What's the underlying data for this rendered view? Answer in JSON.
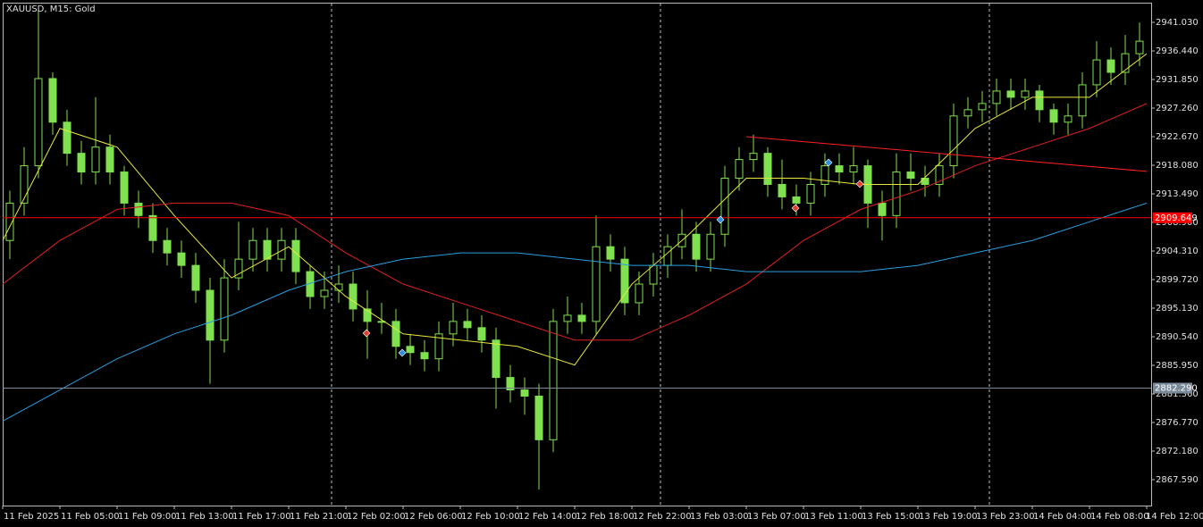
{
  "chart_data": {
    "type": "candlestick",
    "title": "XAUUSD, M15:  Gold",
    "categories": [
      "11 Feb 2025",
      "11 Feb 05:00",
      "11 Feb 09:00",
      "11 Feb 13:00",
      "11 Feb 17:00",
      "11 Feb 21:00",
      "12 Feb 02:00",
      "12 Feb 06:00",
      "12 Feb 10:00",
      "12 Feb 14:00",
      "12 Feb 18:00",
      "12 Feb 22:00",
      "13 Feb 03:00",
      "13 Feb 07:00",
      "13 Feb 11:00",
      "13 Feb 15:00",
      "13 Feb 19:00",
      "13 Feb 23:00",
      "14 Feb 04:00",
      "14 Feb 08:00",
      "14 Feb 12:00"
    ],
    "candle_color": "#7fe050",
    "open": [
      2906,
      2912,
      2918,
      2932,
      2925,
      2920,
      2917,
      2921,
      2917,
      2912,
      2910,
      2906,
      2904,
      2902,
      2898,
      2890,
      2900,
      2903,
      2906,
      2903,
      2906,
      2901,
      2897,
      2898,
      2899,
      2895,
      2893,
      2893,
      2889,
      2888,
      2887,
      2891,
      2893,
      2892,
      2890,
      2884,
      2882,
      2881,
      2874,
      2893,
      2894,
      2893,
      2905,
      2903,
      2896,
      2899,
      2902,
      2905,
      2907,
      2903,
      2907,
      2916,
      2919,
      2920,
      2915,
      2913,
      2912,
      2915,
      2918,
      2917,
      2918,
      2912,
      2910,
      2917,
      2916,
      2915,
      2918,
      2926,
      2927,
      2928,
      2930,
      2929,
      2930,
      2927,
      2925,
      2926,
      2931,
      2935,
      2933,
      2936
    ],
    "high": [
      2914,
      2921,
      2943,
      2933,
      2927,
      2922,
      2929,
      2923,
      2918,
      2914,
      2912,
      2908,
      2906,
      2904,
      2900,
      2903,
      2909,
      2908,
      2908,
      2908,
      2908,
      2902,
      2901,
      2902,
      2901,
      2898,
      2896,
      2895,
      2891,
      2890,
      2893,
      2896,
      2895,
      2894,
      2892,
      2886,
      2884,
      2883,
      2895,
      2897,
      2896,
      2910,
      2907,
      2905,
      2901,
      2904,
      2907,
      2911,
      2909,
      2909,
      2918,
      2921,
      2923,
      2921,
      2919,
      2915,
      2917,
      2920,
      2920,
      2921,
      2919,
      2914,
      2920,
      2920,
      2918,
      2920,
      2928,
      2929,
      2930,
      2932,
      2932,
      2932,
      2931,
      2928,
      2928,
      2933,
      2938,
      2937,
      2939,
      2941
    ],
    "low": [
      2903,
      2910,
      2916,
      2923,
      2918,
      2915,
      2915,
      2915,
      2910,
      2908,
      2904,
      2902,
      2900,
      2896,
      2883,
      2888,
      2898,
      2901,
      2901,
      2901,
      2899,
      2895,
      2895,
      2896,
      2893,
      2887,
      2891,
      2887,
      2886,
      2885,
      2885,
      2889,
      2890,
      2888,
      2879,
      2880,
      2878,
      2866,
      2872,
      2891,
      2891,
      2891,
      2901,
      2894,
      2894,
      2897,
      2900,
      2903,
      2901,
      2901,
      2905,
      2914,
      2917,
      2913,
      2911,
      2910,
      2910,
      2913,
      2915,
      2915,
      2908,
      2906,
      2908,
      2914,
      2913,
      2913,
      2916,
      2924,
      2925,
      2926,
      2927,
      2927,
      2925,
      2923,
      2923,
      2924,
      2929,
      2931,
      2931,
      2934
    ],
    "close": [
      2912,
      2918,
      2932,
      2925,
      2920,
      2917,
      2921,
      2917,
      2912,
      2910,
      2906,
      2904,
      2902,
      2898,
      2890,
      2900,
      2903,
      2906,
      2903,
      2906,
      2901,
      2897,
      2898,
      2899,
      2895,
      2893,
      2893,
      2889,
      2888,
      2887,
      2891,
      2893,
      2892,
      2890,
      2884,
      2882,
      2881,
      2874,
      2893,
      2894,
      2893,
      2905,
      2903,
      2896,
      2899,
      2902,
      2905,
      2907,
      2903,
      2907,
      2916,
      2919,
      2920,
      2915,
      2913,
      2912,
      2915,
      2918,
      2917,
      2918,
      2912,
      2910,
      2917,
      2916,
      2915,
      2918,
      2926,
      2927,
      2928,
      2930,
      2929,
      2930,
      2927,
      2925,
      2926,
      2931,
      2935,
      2933,
      2936,
      2938
    ],
    "series": [
      {
        "color": "#e8e83c",
        "values": [
          2906,
          2924,
          2921,
          2910,
          2900,
          2905,
          2897,
          2891,
          2890,
          2889,
          2886,
          2899,
          2907,
          2916,
          2916,
          2915,
          2915,
          2924,
          2929,
          2929,
          2936
        ]
      },
      {
        "color": "#e02020",
        "values": [
          2899,
          2906,
          2911,
          2912,
          2912,
          2910,
          2904,
          2899,
          2896,
          2893,
          2890,
          2890,
          2894,
          2899,
          2906,
          2911,
          2914,
          2918,
          2921,
          2924,
          2928
        ]
      },
      {
        "color": "#2a9ee0",
        "values": [
          2877,
          2882,
          2887,
          2891,
          2894,
          2898,
          2901,
          2903,
          2904,
          2904,
          2903,
          2902,
          2902,
          2901,
          2901,
          2901,
          2902,
          2904,
          2906,
          2909,
          2912
        ]
      }
    ],
    "hlines": [
      {
        "price": 2909.649,
        "color": "#ff0000"
      },
      {
        "price": {
          "value": 2882.29,
          "label": "2882.290"
        },
        "color": "#7a8a9a"
      }
    ],
    "trendline": {
      "from": [
        52,
        2922.67
      ],
      "to": [
        80,
        2917.1
      ],
      "color": "#ff2020"
    },
    "ylim": [
      2863.43,
      2944.19
    ],
    "yticks": [
      {
        "value": 2941.03,
        "label": "2941.030"
      },
      {
        "value": 2936.44,
        "label": "2936.440"
      },
      {
        "value": 2931.85,
        "label": "2931.850"
      },
      {
        "value": 2927.26,
        "label": "2927.260"
      },
      {
        "value": 2922.67,
        "label": "2922.670"
      },
      {
        "value": 2918.08,
        "label": "2918.080"
      },
      {
        "value": 2913.49,
        "label": "2913.490"
      },
      {
        "value": 2908.9,
        "label": "2908.900"
      },
      {
        "value": 2904.31,
        "label": "2904.310"
      },
      {
        "value": 2899.72,
        "label": "2899.720"
      },
      {
        "value": 2895.13,
        "label": "2895.130"
      },
      {
        "value": 2890.54,
        "label": "2890.540"
      },
      {
        "value": 2885.95,
        "label": "2885.950"
      },
      {
        "value": 2881.36,
        "label": "2881.360"
      },
      {
        "value": 2876.77,
        "label": "2876.770"
      },
      {
        "value": 2872.18,
        "label": "2872.180"
      },
      {
        "value": 2867.59,
        "label": "2867.590"
      }
    ]
  }
}
